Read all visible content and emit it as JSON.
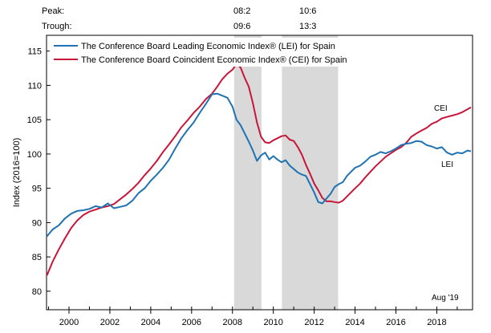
{
  "header": {
    "peak_label": "Peak:",
    "trough_label": "Trough:",
    "peaks": [
      "08:2",
      "10:6"
    ],
    "troughs": [
      "09:6",
      "13:3"
    ]
  },
  "chart_data": {
    "type": "line",
    "ylabel": "Index (2016=100)",
    "date_note": "Aug '19",
    "xlim": [
      1998.9,
      2019.75
    ],
    "ylim": [
      77.3,
      117.3
    ],
    "yticks": [
      80,
      85,
      90,
      95,
      100,
      105,
      110,
      115
    ],
    "xticks": [
      2000,
      2002,
      2004,
      2006,
      2008,
      2010,
      2012,
      2014,
      2016,
      2018
    ],
    "grid": false,
    "legend_position": "top-left",
    "recessions": [
      [
        2008.08,
        2009.42
      ],
      [
        2010.42,
        2013.17
      ]
    ],
    "colors": {
      "lei": "#1f73b3",
      "cei": "#c8163a",
      "recession": "#d9d9d9"
    },
    "series": [
      {
        "name": "The Conference Board Leading Economic Index® (LEI) for Spain",
        "short_label": "LEI",
        "x": [
          1998.92,
          1999.2,
          1999.5,
          1999.8,
          2000.1,
          2000.4,
          2000.7,
          2001.0,
          2001.3,
          2001.6,
          2001.9,
          2002.2,
          2002.5,
          2002.8,
          2003.1,
          2003.4,
          2003.7,
          2004.0,
          2004.3,
          2004.6,
          2004.9,
          2005.2,
          2005.5,
          2005.8,
          2006.1,
          2006.4,
          2006.7,
          2007.0,
          2007.25,
          2007.5,
          2007.75,
          2008.0,
          2008.2,
          2008.4,
          2008.6,
          2008.8,
          2009.0,
          2009.2,
          2009.4,
          2009.6,
          2009.8,
          2010.0,
          2010.2,
          2010.4,
          2010.6,
          2010.8,
          2011.0,
          2011.2,
          2011.4,
          2011.6,
          2011.8,
          2012.0,
          2012.2,
          2012.4,
          2012.6,
          2012.8,
          2013.0,
          2013.2,
          2013.4,
          2013.6,
          2013.8,
          2014.0,
          2014.25,
          2014.5,
          2014.75,
          2015.0,
          2015.25,
          2015.5,
          2015.75,
          2016.0,
          2016.25,
          2016.5,
          2016.75,
          2017.0,
          2017.25,
          2017.5,
          2017.75,
          2018.0,
          2018.25,
          2018.5,
          2018.75,
          2019.0,
          2019.25,
          2019.5,
          2019.67
        ],
        "values": [
          88.0,
          89.0,
          89.6,
          90.6,
          91.3,
          91.7,
          91.8,
          92.0,
          92.4,
          92.2,
          92.8,
          92.1,
          92.3,
          92.5,
          93.2,
          94.3,
          95.0,
          96.1,
          97.0,
          98.0,
          99.2,
          100.8,
          102.3,
          103.5,
          104.6,
          106.0,
          107.3,
          108.7,
          108.8,
          108.5,
          108.2,
          106.9,
          105.0,
          104.2,
          103.0,
          101.8,
          100.5,
          99.0,
          99.8,
          100.2,
          99.2,
          99.7,
          99.2,
          98.8,
          99.1,
          98.3,
          97.8,
          97.3,
          97.0,
          96.8,
          95.6,
          94.4,
          93.0,
          92.8,
          93.5,
          94.2,
          95.2,
          95.6,
          95.9,
          96.8,
          97.4,
          98.0,
          98.3,
          98.9,
          99.6,
          99.9,
          100.3,
          100.1,
          100.4,
          100.8,
          101.3,
          101.5,
          101.6,
          101.9,
          101.8,
          101.3,
          101.1,
          100.8,
          101.0,
          100.2,
          99.9,
          100.2,
          100.1,
          100.5,
          100.4
        ]
      },
      {
        "name": "The Conference Board Coincident Economic Index® (CEI) for Spain",
        "short_label": "CEI",
        "x": [
          1998.92,
          1999.2,
          1999.5,
          1999.8,
          2000.1,
          2000.4,
          2000.7,
          2001.0,
          2001.3,
          2001.6,
          2001.9,
          2002.2,
          2002.5,
          2002.8,
          2003.1,
          2003.4,
          2003.7,
          2004.0,
          2004.3,
          2004.6,
          2004.9,
          2005.2,
          2005.5,
          2005.8,
          2006.1,
          2006.4,
          2006.7,
          2007.0,
          2007.25,
          2007.5,
          2007.75,
          2008.0,
          2008.2,
          2008.4,
          2008.6,
          2008.8,
          2009.0,
          2009.2,
          2009.4,
          2009.6,
          2009.8,
          2010.0,
          2010.2,
          2010.4,
          2010.6,
          2010.8,
          2011.0,
          2011.2,
          2011.4,
          2011.6,
          2011.8,
          2012.0,
          2012.2,
          2012.4,
          2012.6,
          2012.8,
          2013.0,
          2013.2,
          2013.4,
          2013.6,
          2013.8,
          2014.0,
          2014.25,
          2014.5,
          2014.75,
          2015.0,
          2015.25,
          2015.5,
          2015.75,
          2016.0,
          2016.25,
          2016.5,
          2016.75,
          2017.0,
          2017.25,
          2017.5,
          2017.75,
          2018.0,
          2018.25,
          2018.5,
          2018.75,
          2019.0,
          2019.25,
          2019.5,
          2019.67
        ],
        "values": [
          82.3,
          84.3,
          86.1,
          87.7,
          89.2,
          90.3,
          91.1,
          91.6,
          91.9,
          92.2,
          92.4,
          92.7,
          93.4,
          94.1,
          94.9,
          95.8,
          96.9,
          97.9,
          99.0,
          100.3,
          101.4,
          102.6,
          103.9,
          104.9,
          106.0,
          106.9,
          108.0,
          108.8,
          109.8,
          110.9,
          111.7,
          112.3,
          113.1,
          112.6,
          111.1,
          109.8,
          107.4,
          104.6,
          102.5,
          101.7,
          101.6,
          102.0,
          102.3,
          102.6,
          102.7,
          102.1,
          101.9,
          101.0,
          99.9,
          98.4,
          97.1,
          95.7,
          94.7,
          93.6,
          93.1,
          93.1,
          93.0,
          92.9,
          93.2,
          93.8,
          94.4,
          95.0,
          95.7,
          96.6,
          97.4,
          98.2,
          98.9,
          99.6,
          100.1,
          100.6,
          101.0,
          101.6,
          102.5,
          103.0,
          103.4,
          103.8,
          104.4,
          104.7,
          105.2,
          105.4,
          105.6,
          105.8,
          106.1,
          106.5,
          106.8
        ]
      }
    ]
  }
}
